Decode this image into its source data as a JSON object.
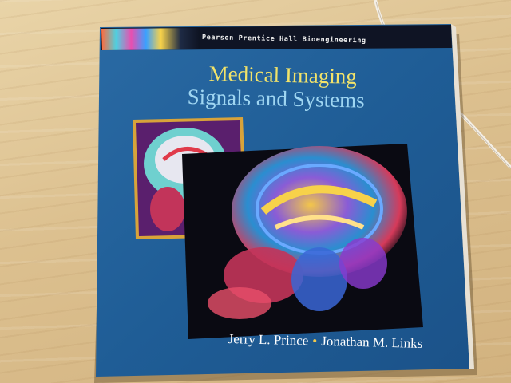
{
  "book": {
    "series_label": "Pearson Prentice Hall Bioengineering",
    "title_line1": "Medical Imaging",
    "title_line2": "Signals and Systems",
    "author1": "Jerry L. Prince",
    "author_separator": "•",
    "author2": "Jonathan M. Links"
  },
  "colors": {
    "cover_blue": "#1f5d96",
    "title_yellow": "#f2e36a",
    "title_light_blue": "#9fd6f2",
    "desk_wood": "#dcc08f"
  }
}
